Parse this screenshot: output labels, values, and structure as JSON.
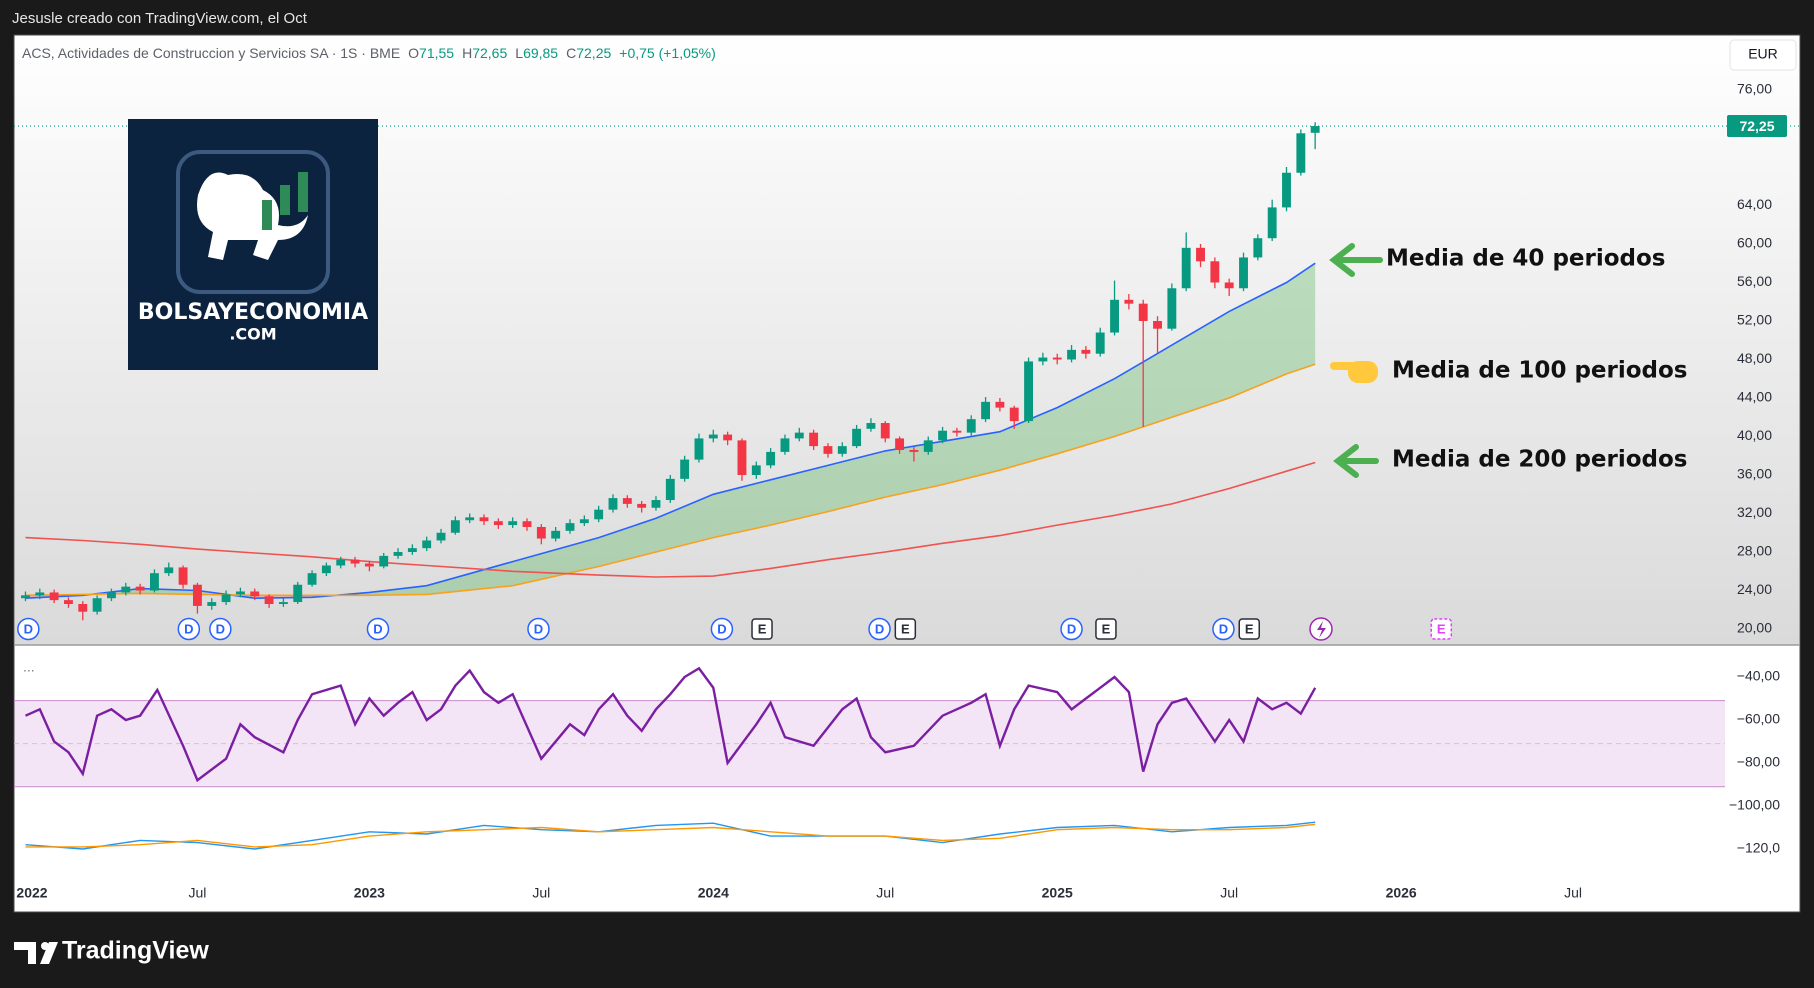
{
  "watermark": "Jesusle creado con TradingView.com, el Oct",
  "footer": {
    "brand": "TradingView"
  },
  "logo": {
    "name": "BOLSAYECONOMIA",
    "domain": ".COM"
  },
  "chart_data": [
    {
      "type": "candlestick",
      "title": "ACS, Actividades de Construccion y Servicios SA · 1S · BME",
      "ohlc": [
        [
          "O",
          "71,55"
        ],
        [
          "H",
          "72,65"
        ],
        [
          "L",
          "69,85"
        ],
        [
          "C",
          "72,25"
        ]
      ],
      "change": "+0,75 (+1,05%)",
      "currency": "EUR",
      "x": [
        0,
        0.5,
        1,
        1.5,
        2,
        2.5,
        3,
        3.5,
        4,
        4.5,
        5,
        5.5,
        6,
        6.5,
        7,
        7.5,
        8,
        8.5,
        9,
        9.5,
        10,
        10.5,
        11,
        11.5,
        12,
        12.5,
        13,
        13.5,
        14,
        14.5,
        15,
        15.5,
        16,
        16.5,
        17,
        17.5,
        18,
        18.5,
        19,
        19.5,
        20,
        20.5,
        21,
        21.5,
        22,
        22.5,
        23,
        23.5,
        24,
        24.5,
        25,
        25.5,
        26,
        26.5,
        27,
        27.5,
        28,
        28.5,
        29,
        29.5,
        30,
        30.5,
        31,
        31.5,
        32,
        32.5,
        33,
        33.5,
        34,
        34.5,
        35,
        35.5,
        36,
        36.5,
        37,
        37.5,
        38,
        38.5,
        39,
        39.5,
        40,
        40.5,
        41,
        41.5,
        42,
        42.5,
        43,
        43.5,
        44,
        44.5,
        45
      ],
      "open": [
        23.2,
        23.5,
        23.8,
        23.0,
        22.6,
        21.8,
        23.2,
        23.8,
        24.4,
        24.0,
        25.8,
        26.4,
        24.6,
        22.4,
        22.8,
        23.6,
        23.9,
        23.4,
        22.6,
        22.8,
        24.6,
        25.8,
        26.6,
        27.2,
        26.8,
        26.5,
        27.6,
        28.0,
        28.4,
        29.2,
        30.0,
        31.3,
        31.6,
        31.2,
        30.8,
        31.2,
        30.6,
        29.4,
        30.2,
        31.0,
        31.4,
        32.4,
        33.6,
        33.0,
        32.6,
        33.4,
        35.6,
        37.6,
        39.8,
        40.2,
        39.6,
        36.0,
        37.0,
        38.4,
        39.8,
        40.4,
        39.0,
        38.2,
        39.0,
        40.8,
        41.4,
        39.8,
        38.6,
        38.4,
        39.6,
        40.6,
        40.4,
        41.8,
        43.6,
        43.0,
        41.6,
        47.8,
        48.2,
        48.0,
        49.0,
        48.6,
        50.8,
        54.2,
        53.8,
        52.0,
        51.2,
        55.4,
        59.6,
        58.2,
        56.0,
        55.4,
        58.6,
        60.6,
        63.8,
        67.4,
        71.55
      ],
      "high": [
        23.9,
        24.2,
        24.1,
        23.3,
        22.9,
        23.5,
        24.2,
        24.8,
        24.7,
        26.2,
        26.9,
        26.6,
        24.8,
        23.2,
        24.0,
        24.3,
        24.2,
        23.6,
        23.2,
        24.9,
        26.1,
        26.9,
        27.5,
        27.5,
        27.1,
        27.9,
        28.4,
        28.8,
        29.6,
        30.4,
        31.7,
        32.0,
        31.9,
        31.5,
        31.6,
        31.5,
        30.9,
        30.6,
        31.4,
        31.8,
        32.8,
        34.0,
        33.9,
        33.3,
        33.8,
        36.0,
        38.0,
        40.3,
        40.7,
        40.5,
        39.8,
        37.4,
        38.8,
        40.2,
        40.9,
        40.7,
        39.3,
        39.4,
        41.2,
        41.9,
        41.6,
        40.0,
        38.9,
        40.0,
        41.0,
        40.9,
        42.2,
        44.1,
        44.0,
        43.2,
        48.2,
        48.7,
        48.6,
        49.5,
        49.4,
        51.3,
        56.2,
        54.8,
        54.2,
        52.5,
        55.9,
        61.2,
        60.0,
        58.6,
        56.4,
        59.1,
        61.0,
        64.6,
        68.0,
        71.9,
        72.65
      ],
      "low": [
        22.9,
        23.1,
        22.7,
        22.2,
        20.9,
        21.5,
        22.9,
        23.5,
        23.6,
        23.8,
        25.5,
        24.2,
        21.6,
        22.0,
        22.5,
        23.3,
        23.0,
        22.2,
        22.3,
        22.6,
        24.4,
        25.5,
        26.3,
        26.4,
        26.0,
        26.3,
        27.3,
        27.7,
        28.1,
        28.9,
        29.8,
        31.0,
        30.8,
        30.4,
        30.5,
        30.2,
        28.8,
        29.1,
        29.9,
        30.7,
        31.1,
        32.1,
        32.6,
        32.1,
        32.3,
        33.1,
        35.3,
        37.3,
        39.4,
        39.1,
        35.4,
        35.6,
        36.7,
        38.1,
        39.5,
        38.6,
        37.8,
        37.9,
        38.8,
        40.5,
        39.4,
        38.2,
        37.4,
        38.1,
        39.3,
        40.0,
        40.1,
        41.5,
        42.6,
        40.8,
        41.4,
        47.4,
        47.5,
        47.7,
        48.1,
        48.3,
        50.5,
        53.2,
        41.0,
        48.6,
        51.0,
        55.1,
        57.6,
        55.4,
        54.6,
        55.1,
        58.3,
        60.3,
        63.4,
        67.1,
        69.85
      ],
      "close": [
        23.5,
        23.8,
        23.0,
        22.6,
        21.8,
        23.2,
        23.8,
        24.4,
        24.0,
        25.8,
        26.4,
        24.6,
        22.4,
        22.8,
        23.6,
        23.9,
        23.4,
        22.6,
        22.8,
        24.6,
        25.8,
        26.6,
        27.2,
        26.8,
        26.5,
        27.6,
        28.0,
        28.4,
        29.2,
        30.0,
        31.3,
        31.6,
        31.2,
        30.8,
        31.2,
        30.6,
        29.4,
        30.2,
        31.0,
        31.4,
        32.4,
        33.6,
        33.0,
        32.6,
        33.4,
        35.6,
        37.6,
        39.8,
        40.2,
        39.6,
        36.0,
        37.0,
        38.4,
        39.8,
        40.4,
        39.0,
        38.2,
        39.0,
        40.8,
        41.4,
        39.8,
        38.6,
        38.4,
        39.6,
        40.6,
        40.4,
        41.8,
        43.6,
        43.0,
        41.6,
        47.8,
        48.2,
        48.0,
        49.0,
        48.6,
        50.8,
        54.2,
        53.8,
        52.0,
        51.2,
        55.4,
        59.6,
        58.2,
        56.0,
        55.4,
        58.6,
        60.6,
        63.8,
        67.4,
        71.5,
        72.25
      ],
      "color_up": "#089981",
      "color_down": "#f23645",
      "series": [
        {
          "label": "Media de 40 periodos",
          "color": "#2962ff",
          "x": [
            0,
            2,
            4,
            6,
            8,
            10,
            12,
            14,
            17,
            20,
            22,
            24,
            26,
            28,
            30,
            32,
            34,
            36,
            38,
            40,
            42,
            44,
            45
          ],
          "values": [
            23.2,
            23.5,
            24.2,
            24.0,
            23.2,
            23.3,
            23.8,
            24.5,
            27.0,
            29.5,
            31.5,
            34.0,
            35.5,
            37.0,
            38.5,
            39.5,
            40.5,
            43.0,
            46.0,
            49.5,
            53.0,
            56.0,
            58.0
          ]
        },
        {
          "label": "Media de 100 periodos",
          "color": "#f7a21b",
          "x": [
            0,
            2,
            4,
            6,
            8,
            10,
            12,
            14,
            17,
            20,
            22,
            24,
            26,
            28,
            30,
            32,
            34,
            36,
            38,
            40,
            42,
            44,
            45
          ],
          "values": [
            23.5,
            23.6,
            23.7,
            23.6,
            23.5,
            23.5,
            23.5,
            23.6,
            24.5,
            26.5,
            28.0,
            29.5,
            30.8,
            32.2,
            33.7,
            35.0,
            36.5,
            38.2,
            40.0,
            42.0,
            44.0,
            46.5,
            47.5
          ]
        },
        {
          "label": "Media de 200 periodos",
          "color": "#f0524f",
          "x": [
            0,
            2,
            4,
            6,
            8,
            10,
            12,
            14,
            17,
            20,
            22,
            24,
            26,
            28,
            30,
            32,
            34,
            36,
            38,
            40,
            42,
            44,
            45
          ],
          "values": [
            29.5,
            29.2,
            28.8,
            28.3,
            27.9,
            27.5,
            27.0,
            26.6,
            26.0,
            25.6,
            25.4,
            25.5,
            26.3,
            27.2,
            28.0,
            28.9,
            29.7,
            30.8,
            31.8,
            33.0,
            34.6,
            36.4,
            37.3
          ]
        }
      ],
      "fill_above": "rgba(76,175,80,0.32)",
      "fill_below": "rgba(242,54,69,0.25)",
      "last": {
        "value": 72.25,
        "label": "72,25"
      },
      "last_color": "#089981",
      "events": [
        {
          "label": "D",
          "x": 0.1
        },
        {
          "label": "D",
          "x": 5.7
        },
        {
          "label": "D",
          "x": 6.8
        },
        {
          "label": "D",
          "x": 12.3
        },
        {
          "label": "D",
          "x": 17.9
        },
        {
          "label": "D",
          "x": 24.3
        },
        {
          "label": "E",
          "x": 25.7
        },
        {
          "label": "D",
          "x": 29.8
        },
        {
          "label": "E",
          "x": 30.7
        },
        {
          "label": "D",
          "x": 36.5
        },
        {
          "label": "E",
          "x": 37.7
        },
        {
          "label": "D",
          "x": 41.8
        },
        {
          "label": "E",
          "x": 42.7
        },
        {
          "label": "E",
          "x": 49.4,
          "upcoming": true
        }
      ],
      "xlim": [
        -0.4,
        59.3
      ],
      "xticks": [
        {
          "value": 0,
          "label": "2022"
        },
        {
          "value": 6,
          "label": "Jul"
        },
        {
          "value": 12,
          "label": "2023"
        },
        {
          "value": 18,
          "label": "Jul"
        },
        {
          "value": 24,
          "label": "2024"
        },
        {
          "value": 30,
          "label": "Jul"
        },
        {
          "value": 36,
          "label": "2025"
        },
        {
          "value": 42,
          "label": "Jul"
        },
        {
          "value": 48,
          "label": "2026"
        },
        {
          "value": 54,
          "label": "Jul"
        }
      ],
      "ylim": [
        18.34,
        81.71
      ],
      "yticks": [
        {
          "value": 20,
          "label": "20,00"
        },
        {
          "value": 24,
          "label": "24,00"
        },
        {
          "value": 28,
          "label": "28,00"
        },
        {
          "value": 32,
          "label": "32,00"
        },
        {
          "value": 36,
          "label": "36,00"
        },
        {
          "value": 40,
          "label": "40,00"
        },
        {
          "value": 44,
          "label": "44,00"
        },
        {
          "value": 48,
          "label": "48,00"
        },
        {
          "value": 52,
          "label": "52,00"
        },
        {
          "value": 56,
          "label": "56,00"
        },
        {
          "value": 60,
          "label": "60,00"
        },
        {
          "value": 64,
          "label": "64,00"
        },
        {
          "value": 76,
          "label": "76,00"
        }
      ],
      "grid": false
    },
    {
      "type": "line",
      "legend_toggle": "...",
      "band": [
        -91,
        -51
      ],
      "band_color": "rgba(156,39,176,0.12)",
      "band_line_color": "#c48bc9",
      "series": [
        {
          "color": "#7b1fa2",
          "x": [
            0,
            0.5,
            1,
            1.5,
            2,
            2.5,
            3,
            3.5,
            4,
            4.6,
            5.5,
            6,
            7,
            7.5,
            8,
            9,
            9.5,
            10,
            11,
            11.5,
            12,
            12.5,
            13,
            13.5,
            14,
            14.5,
            15,
            15.5,
            16,
            16.5,
            17,
            18,
            19,
            19.5,
            20,
            20.5,
            21,
            21.5,
            22,
            22.5,
            23,
            23.5,
            24,
            24.5,
            25.5,
            26,
            26.5,
            27.5,
            28.5,
            29,
            29.5,
            30,
            31,
            32,
            33,
            33.5,
            34,
            34.5,
            35,
            36,
            36.5,
            37,
            37.5,
            38,
            38.5,
            39,
            39.5,
            40,
            40.5,
            41,
            41.5,
            42,
            42.5,
            43,
            43.5,
            44,
            44.5,
            45
          ],
          "values": [
            -58,
            -55,
            -70,
            -75,
            -85,
            -58,
            -55,
            -60,
            -58,
            -46,
            -72,
            -88,
            -78,
            -62,
            -68,
            -75,
            -60,
            -48,
            -44,
            -62,
            -50,
            -58,
            -52,
            -47,
            -60,
            -55,
            -44,
            -37,
            -47,
            -52,
            -48,
            -78,
            -62,
            -67,
            -55,
            -48,
            -58,
            -65,
            -55,
            -48,
            -40,
            -36,
            -45,
            -80,
            -62,
            -52,
            -68,
            -72,
            -55,
            -50,
            -68,
            -75,
            -72,
            -58,
            -52,
            -48,
            -72,
            -55,
            -44,
            -47,
            -55,
            -50,
            -45,
            -40,
            -47,
            -84,
            -62,
            -52,
            -50,
            -60,
            -70,
            -60,
            -70,
            -50,
            -55,
            -52,
            -57,
            -45
          ]
        },
        {
          "color": "#2196f3",
          "x": [
            0,
            2,
            4,
            6,
            8,
            10,
            12,
            14,
            16,
            18,
            20,
            22,
            24,
            26,
            28,
            30,
            32,
            34,
            36,
            38,
            40,
            42,
            44,
            45
          ],
          "values": [
            -118,
            -120,
            -116,
            -117,
            -120,
            -116,
            -112,
            -113,
            -109,
            -111,
            -112,
            -109,
            -108,
            -114,
            -114,
            -114,
            -117,
            -113,
            -110,
            -109,
            -112,
            -110,
            -109,
            -107.5
          ]
        },
        {
          "color": "#ff9800",
          "x": [
            0,
            2,
            4,
            6,
            8,
            10,
            12,
            14,
            16,
            18,
            20,
            22,
            24,
            26,
            28,
            30,
            32,
            34,
            36,
            38,
            40,
            42,
            44,
            45
          ],
          "values": [
            -119,
            -119,
            -118,
            -116,
            -119,
            -118,
            -114,
            -112,
            -111,
            -110,
            -112,
            -111,
            -110,
            -112,
            -114,
            -114,
            -116,
            -115,
            -111,
            -110,
            -111,
            -111,
            -110,
            -108.5
          ]
        }
      ],
      "ylim": [
        -134.4,
        -25.1
      ],
      "yticks": [
        {
          "value": -40,
          "label": "−40,00"
        },
        {
          "value": -60,
          "label": "−60,00"
        },
        {
          "value": -80,
          "label": "−80,00"
        },
        {
          "value": -100,
          "label": "−100,00"
        },
        {
          "value": -120,
          "label": "−120,0"
        }
      ]
    }
  ]
}
